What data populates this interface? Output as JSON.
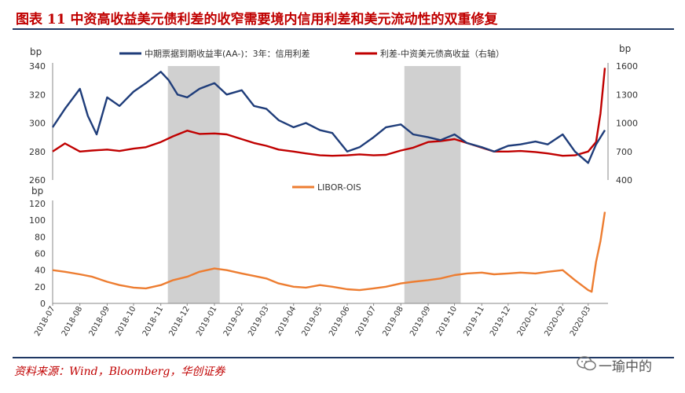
{
  "header": {
    "title": "图表 11    中资高收益美元债利差的收窄需要境内信用利差和美元流动性的双重修复"
  },
  "footer": {
    "source": "资料来源：Wind，Bloomberg，华创证券",
    "watermark": "一瑜中的"
  },
  "colors": {
    "series_navy": "#1f3d7a",
    "series_red": "#c00000",
    "series_orange": "#ed7d31",
    "shade": "#d0d0d0",
    "title": "#c00000",
    "rule": "#1f3864"
  },
  "chart_data": [
    {
      "type": "line",
      "panel": "top",
      "left_axis_unit": "bp",
      "right_axis_unit": "bp",
      "ylim_left": [
        260,
        340
      ],
      "left_ticks": [
        260,
        280,
        300,
        320,
        340
      ],
      "ylim_right": [
        400,
        1600
      ],
      "right_ticks": [
        400,
        700,
        1000,
        1300,
        1600
      ],
      "grid": false,
      "legend_position": "top",
      "shaded_periods": [
        {
          "start": "2018-11-09",
          "end": "2019-01-07"
        },
        {
          "start": "2019-08-05",
          "end": "2019-10-08"
        }
      ],
      "series": [
        {
          "name": "中期票据到期收益率(AA-)：3年：信用利差",
          "axis": "left",
          "color": "#1f3d7a",
          "x": [
            "2018-07-01",
            "2018-07-15",
            "2018-08-01",
            "2018-08-10",
            "2018-08-20",
            "2018-09-01",
            "2018-09-15",
            "2018-10-01",
            "2018-10-15",
            "2018-11-01",
            "2018-11-10",
            "2018-11-20",
            "2018-12-01",
            "2018-12-15",
            "2019-01-01",
            "2019-01-15",
            "2019-02-01",
            "2019-02-15",
            "2019-03-01",
            "2019-03-15",
            "2019-04-01",
            "2019-04-15",
            "2019-05-01",
            "2019-05-15",
            "2019-06-01",
            "2019-06-15",
            "2019-07-01",
            "2019-07-15",
            "2019-08-01",
            "2019-08-15",
            "2019-09-01",
            "2019-09-15",
            "2019-10-01",
            "2019-10-15",
            "2019-11-01",
            "2019-11-15",
            "2019-12-01",
            "2019-12-15",
            "2020-01-01",
            "2020-01-15",
            "2020-02-01",
            "2020-02-15",
            "2020-03-01",
            "2020-03-10",
            "2020-03-20"
          ],
          "values": [
            297,
            310,
            324,
            305,
            292,
            318,
            312,
            322,
            328,
            336,
            330,
            320,
            318,
            324,
            328,
            320,
            323,
            312,
            310,
            302,
            297,
            300,
            295,
            293,
            280,
            283,
            290,
            297,
            299,
            292,
            290,
            288,
            292,
            286,
            283,
            280,
            284,
            285,
            287,
            285,
            292,
            280,
            272,
            285,
            295
          ]
        },
        {
          "name": "利差-中资美元债高收益（右轴）",
          "axis": "right",
          "color": "#c00000",
          "x": [
            "2018-07-01",
            "2018-07-15",
            "2018-08-01",
            "2018-08-15",
            "2018-09-01",
            "2018-09-15",
            "2018-10-01",
            "2018-10-15",
            "2018-11-01",
            "2018-11-15",
            "2018-12-01",
            "2018-12-15",
            "2019-01-01",
            "2019-01-15",
            "2019-02-01",
            "2019-02-15",
            "2019-03-01",
            "2019-03-15",
            "2019-04-01",
            "2019-04-15",
            "2019-05-01",
            "2019-05-15",
            "2019-06-01",
            "2019-06-15",
            "2019-07-01",
            "2019-07-15",
            "2019-08-01",
            "2019-08-15",
            "2019-09-01",
            "2019-09-15",
            "2019-10-01",
            "2019-10-15",
            "2019-11-01",
            "2019-11-15",
            "2019-12-01",
            "2019-12-15",
            "2020-01-01",
            "2020-01-15",
            "2020-02-01",
            "2020-02-15",
            "2020-03-01",
            "2020-03-10",
            "2020-03-15",
            "2020-03-20"
          ],
          "values": [
            700,
            785,
            700,
            710,
            720,
            705,
            730,
            745,
            800,
            860,
            920,
            885,
            890,
            880,
            830,
            790,
            760,
            720,
            700,
            680,
            660,
            655,
            660,
            670,
            660,
            665,
            710,
            740,
            800,
            810,
            830,
            790,
            740,
            700,
            700,
            705,
            695,
            680,
            655,
            660,
            700,
            800,
            1100,
            1580
          ]
        }
      ],
      "legend": [
        "中期票据到期收益率(AA-)：3年：信用利差",
        "利差-中资美元债高收益（右轴）"
      ]
    },
    {
      "type": "line",
      "panel": "bottom",
      "y_unit": "bp",
      "ylim": [
        0,
        120
      ],
      "yticks": [
        0,
        20,
        40,
        60,
        80,
        100,
        120
      ],
      "grid": false,
      "legend_position": "top",
      "x_tick_labels": [
        "2018-07",
        "2018-08",
        "2018-09",
        "2018-10",
        "2018-11",
        "2018-12",
        "2019-01",
        "2019-02",
        "2019-03",
        "2019-04",
        "2019-05",
        "2019-06",
        "2019-07",
        "2019-08",
        "2019-09",
        "2019-10",
        "2019-11",
        "2019-12",
        "2020-01",
        "2020-02",
        "2020-03"
      ],
      "series": [
        {
          "name": "LIBOR-OIS",
          "color": "#ed7d31",
          "x": [
            "2018-07-01",
            "2018-07-15",
            "2018-08-01",
            "2018-08-15",
            "2018-09-01",
            "2018-09-15",
            "2018-10-01",
            "2018-10-15",
            "2018-11-01",
            "2018-11-15",
            "2018-12-01",
            "2018-12-15",
            "2019-01-01",
            "2019-01-15",
            "2019-02-01",
            "2019-02-15",
            "2019-03-01",
            "2019-03-15",
            "2019-04-01",
            "2019-04-15",
            "2019-05-01",
            "2019-05-15",
            "2019-06-01",
            "2019-06-15",
            "2019-07-01",
            "2019-07-15",
            "2019-08-01",
            "2019-08-15",
            "2019-09-01",
            "2019-09-15",
            "2019-10-01",
            "2019-10-15",
            "2019-11-01",
            "2019-11-15",
            "2019-12-01",
            "2019-12-15",
            "2020-01-01",
            "2020-01-15",
            "2020-02-01",
            "2020-02-15",
            "2020-03-01",
            "2020-03-05",
            "2020-03-10",
            "2020-03-15",
            "2020-03-20"
          ],
          "values": [
            40,
            38,
            35,
            32,
            26,
            22,
            19,
            18,
            22,
            28,
            32,
            38,
            42,
            40,
            36,
            33,
            30,
            24,
            20,
            19,
            22,
            20,
            17,
            16,
            18,
            20,
            24,
            26,
            28,
            30,
            34,
            36,
            37,
            35,
            36,
            37,
            36,
            38,
            40,
            28,
            16,
            14,
            50,
            75,
            110
          ]
        }
      ],
      "legend": [
        "LIBOR-OIS"
      ]
    }
  ]
}
